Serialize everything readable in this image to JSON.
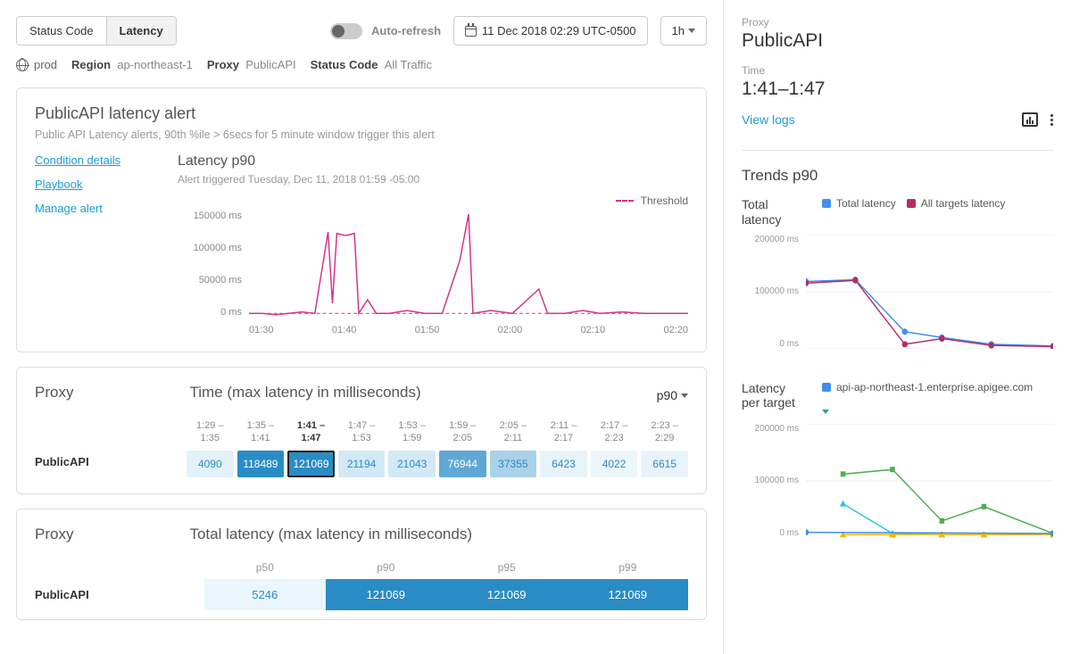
{
  "toolbar": {
    "tabs": [
      "Status Code",
      "Latency"
    ],
    "active_tab": 1,
    "auto_refresh_label": "Auto-refresh",
    "auto_refresh_on": false,
    "date_display": "11 Dec 2018 02:29 UTC-0500",
    "range_label": "1h"
  },
  "breadcrumb": {
    "env": "prod",
    "pairs": [
      {
        "k": "Region",
        "v": "ap-northeast-1"
      },
      {
        "k": "Proxy",
        "v": "PublicAPI"
      },
      {
        "k": "Status Code",
        "v": "All Traffic"
      }
    ]
  },
  "alert": {
    "title": "PublicAPI latency alert",
    "subtitle": "Public API Latency alerts, 90th %ile > 6secs for 5 minute window trigger this alert",
    "links": [
      {
        "label": "Condition details",
        "underline": true
      },
      {
        "label": "Playbook",
        "underline": true
      },
      {
        "label": "Manage alert",
        "underline": false
      }
    ],
    "chart": {
      "title": "Latency p90",
      "triggered": "Alert triggered Tuesday, Dec 11, 2018 01:59 -05:00",
      "legend_threshold": "Threshold",
      "type": "line",
      "y_ticks": [
        "150000 ms",
        "100000 ms",
        "50000 ms",
        "0 ms"
      ],
      "x_ticks": [
        "01:30",
        "01:40",
        "01:50",
        "02:00",
        "02:10",
        "02:20"
      ],
      "ymax": 150000,
      "threshold_value": 6000,
      "series": [
        {
          "x": 0,
          "y": 6000
        },
        {
          "x": 3,
          "y": 6000
        },
        {
          "x": 6,
          "y": 4000
        },
        {
          "x": 9,
          "y": 6000
        },
        {
          "x": 12,
          "y": 8000
        },
        {
          "x": 15,
          "y": 6000
        },
        {
          "x": 18,
          "y": 120000
        },
        {
          "x": 19,
          "y": 20000
        },
        {
          "x": 20,
          "y": 118000
        },
        {
          "x": 22,
          "y": 115000
        },
        {
          "x": 24,
          "y": 118000
        },
        {
          "x": 25,
          "y": 6000
        },
        {
          "x": 27,
          "y": 25000
        },
        {
          "x": 29,
          "y": 6000
        },
        {
          "x": 32,
          "y": 6000
        },
        {
          "x": 36,
          "y": 10000
        },
        {
          "x": 40,
          "y": 6000
        },
        {
          "x": 44,
          "y": 6000
        },
        {
          "x": 48,
          "y": 80000
        },
        {
          "x": 50,
          "y": 145000
        },
        {
          "x": 51,
          "y": 6000
        },
        {
          "x": 55,
          "y": 10000
        },
        {
          "x": 60,
          "y": 6000
        },
        {
          "x": 66,
          "y": 40000
        },
        {
          "x": 68,
          "y": 6000
        },
        {
          "x": 72,
          "y": 6000
        },
        {
          "x": 76,
          "y": 10000
        },
        {
          "x": 80,
          "y": 6000
        },
        {
          "x": 85,
          "y": 8000
        },
        {
          "x": 90,
          "y": 6000
        },
        {
          "x": 95,
          "y": 6000
        },
        {
          "x": 100,
          "y": 6000
        }
      ],
      "line_color": "#d63384",
      "threshold_color": "#d63384"
    }
  },
  "heatmap": {
    "left_title": "Proxy",
    "right_title": "Time (max latency in milliseconds)",
    "dropdown": "p90",
    "row_label": "PublicAPI",
    "cells": [
      {
        "time": "1:29 –\n1:35",
        "value": 4090,
        "bg": "#e3f2fa",
        "fg": "#2a8cc4"
      },
      {
        "time": "1:35 –\n1:41",
        "value": 118489,
        "bg": "#2a8cc4",
        "fg": "#ffffff"
      },
      {
        "time": "1:41 –\n1:47",
        "value": 121069,
        "bg": "#2a8cc4",
        "fg": "#ffffff",
        "selected": true
      },
      {
        "time": "1:47 –\n1:53",
        "value": 21194,
        "bg": "#d3e9f5",
        "fg": "#2a8cc4"
      },
      {
        "time": "1:53 –\n1:59",
        "value": 21043,
        "bg": "#d3e9f5",
        "fg": "#2a8cc4"
      },
      {
        "time": "1:59 –\n2:05",
        "value": 76944,
        "bg": "#5fa8d3",
        "fg": "#ffffff"
      },
      {
        "time": "2:05 –\n2:11",
        "value": 37355,
        "bg": "#a9d1e8",
        "fg": "#2a8cc4"
      },
      {
        "time": "2:11 –\n2:17",
        "value": 6423,
        "bg": "#e8f3fa",
        "fg": "#2a8cc4"
      },
      {
        "time": "2:17 –\n2:23",
        "value": 4022,
        "bg": "#edf6fb",
        "fg": "#2a8cc4"
      },
      {
        "time": "2:23 –\n2:29",
        "value": 6615,
        "bg": "#e8f3fa",
        "fg": "#2a8cc4"
      }
    ]
  },
  "pbar": {
    "left_title": "Proxy",
    "right_title": "Total latency (max latency in milliseconds)",
    "row_label": "PublicAPI",
    "cols": [
      "p50",
      "p90",
      "p95",
      "p99"
    ],
    "cells": [
      {
        "value": 5246,
        "bg": "#eaf6fc",
        "fg": "#2a8cc4"
      },
      {
        "value": 121069,
        "bg": "#2a8cc4",
        "fg": "#ffffff"
      },
      {
        "value": 121069,
        "bg": "#2a8cc4",
        "fg": "#ffffff"
      },
      {
        "value": 121069,
        "bg": "#2a8cc4",
        "fg": "#ffffff"
      }
    ]
  },
  "side": {
    "proxy_k": "Proxy",
    "proxy_v": "PublicAPI",
    "time_k": "Time",
    "time_v": "1:41–1:47",
    "view_logs": "View logs",
    "trends_title": "Trends p90",
    "trend1": {
      "title": "Total latency",
      "legend": [
        {
          "label": "Total latency",
          "color": "#3f8ef0"
        },
        {
          "label": "All targets latency",
          "color": "#b32d67"
        }
      ],
      "y_ticks": [
        "200000 ms",
        "100000 ms",
        "0 ms"
      ],
      "ymax": 200000,
      "series": [
        {
          "color": "#3f8ef0",
          "points": [
            {
              "x": 0,
              "y": 118000
            },
            {
              "x": 20,
              "y": 121000
            },
            {
              "x": 40,
              "y": 30000
            },
            {
              "x": 55,
              "y": 20000
            },
            {
              "x": 75,
              "y": 8000
            },
            {
              "x": 100,
              "y": 5000
            }
          ]
        },
        {
          "color": "#b32d67",
          "points": [
            {
              "x": 0,
              "y": 115000
            },
            {
              "x": 20,
              "y": 120000
            },
            {
              "x": 40,
              "y": 8000
            },
            {
              "x": 55,
              "y": 18000
            },
            {
              "x": 75,
              "y": 6000
            },
            {
              "x": 100,
              "y": 4000
            }
          ]
        }
      ]
    },
    "trend2": {
      "title": "Latency per target",
      "legend": [
        {
          "label": "api-ap-northeast-1.enterprise.apigee.com",
          "color": "#3f8ef0"
        }
      ],
      "y_ticks": [
        "200000 ms",
        "100000 ms",
        "0 ms"
      ],
      "ymax": 200000,
      "series": [
        {
          "color": "#4caf50",
          "shape": "square",
          "points": [
            {
              "x": 15,
              "y": 112000
            },
            {
              "x": 35,
              "y": 120000
            },
            {
              "x": 55,
              "y": 30000
            },
            {
              "x": 72,
              "y": 55000
            },
            {
              "x": 100,
              "y": 8000
            }
          ]
        },
        {
          "color": "#26c6da",
          "shape": "tri",
          "points": [
            {
              "x": 15,
              "y": 60000
            },
            {
              "x": 35,
              "y": 8000
            },
            {
              "x": 55,
              "y": 6000
            },
            {
              "x": 72,
              "y": 6000
            },
            {
              "x": 100,
              "y": 6000
            }
          ]
        },
        {
          "color": "#ffb300",
          "shape": "tri",
          "points": [
            {
              "x": 15,
              "y": 6000
            },
            {
              "x": 35,
              "y": 6000
            },
            {
              "x": 55,
              "y": 6000
            },
            {
              "x": 72,
              "y": 6000
            },
            {
              "x": 100,
              "y": 6000
            }
          ]
        },
        {
          "color": "#3f8ef0",
          "shape": "circle",
          "points": [
            {
              "x": 0,
              "y": 10000
            },
            {
              "x": 100,
              "y": 8000
            }
          ]
        }
      ]
    }
  },
  "colors": {
    "link": "#1a9cd6",
    "border": "#ddd"
  }
}
